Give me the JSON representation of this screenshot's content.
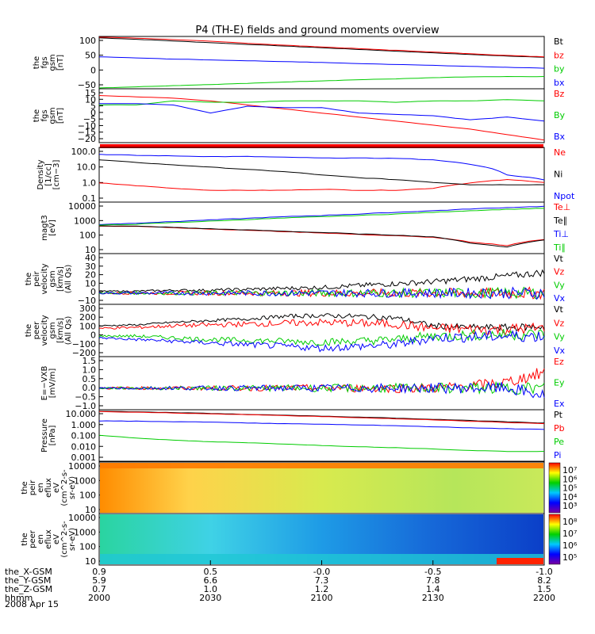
{
  "chart_data": {
    "type": "line",
    "title": "P4 (TH-E) fields and ground moments overview",
    "x_tick_labels": [
      "2000",
      "2030",
      "2100",
      "2130",
      "2200"
    ],
    "ephemeris": [
      {
        "name": "the_X-GSM",
        "values": [
          "0.9",
          "0.5",
          "-0.0",
          "-0.5",
          "-1.0"
        ]
      },
      {
        "name": "the_Y-GSM",
        "values": [
          "5.9",
          "6.6",
          "7.3",
          "7.8",
          "8.2"
        ]
      },
      {
        "name": "the_Z-GSM",
        "values": [
          "0.7",
          "1.0",
          "1.2",
          "1.4",
          "1.5"
        ]
      },
      {
        "name": "hhmm",
        "values": []
      }
    ],
    "date_label": "2008 Apr 15",
    "panels": [
      {
        "id": "fgs-gsm",
        "ylabel": [
          "the",
          "fgs",
          "gsm",
          "[nT]"
        ],
        "ticks": [
          "100",
          "50",
          "0",
          "−50"
        ],
        "ylim": [
          -75,
          110
        ],
        "series": [
          {
            "name": "Bt",
            "color": "#000000",
            "values": [
              105,
              100,
              94,
              88,
              82,
              76,
              70,
              64,
              58,
              52,
              46,
              41,
              36
            ]
          },
          {
            "name": "bz",
            "color": "#ff0000",
            "values": [
              108,
              104,
              99,
              93,
              86,
              79,
              73,
              67,
              61,
              55,
              49,
              43,
              38
            ]
          },
          {
            "name": "by",
            "color": "#00cc00",
            "values": [
              -72,
              -68,
              -64,
              -60,
              -56,
              -51,
              -47,
              -43,
              -40,
              -36,
              -33,
              -32,
              -32
            ]
          },
          {
            "name": "bx",
            "color": "#0000ff",
            "values": [
              38,
              34,
              30,
              27,
              24,
              21,
              18,
              14,
              11,
              8,
              4,
              1,
              -2
            ]
          }
        ]
      },
      {
        "id": "fgs-gsm-detail",
        "ylabel": [
          "the",
          "fgs",
          "gsm",
          "[nT]"
        ],
        "ticks": [
          "15",
          "10",
          "5",
          "0",
          "−5",
          "−10",
          "−15",
          "−20"
        ],
        "ylim": [
          -23,
          17
        ],
        "series": [
          {
            "name": "Bz",
            "color": "#ff0000",
            "values": [
              12,
              11,
              10,
              8,
              5,
              2,
              -1,
              -4,
              -7,
              -10,
              -13,
              -17,
              -21
            ]
          },
          {
            "name": "By",
            "color": "#00cc00",
            "values": [
              5,
              5,
              8,
              7,
              7,
              8,
              8,
              8,
              7,
              8,
              8,
              9,
              8
            ]
          },
          {
            "name": "Bx",
            "color": "#0000ff",
            "values": [
              6,
              6,
              5,
              -1,
              4,
              3,
              3,
              -1,
              -2,
              -3,
              -6,
              -4,
              -7
            ]
          }
        ]
      },
      {
        "id": "density",
        "ylabel": [
          "Density",
          "[1/cc]",
          "[cm−3]"
        ],
        "log": true,
        "ticks": [
          "100.0",
          "10.0",
          "1.0",
          "0.1"
        ],
        "ylim": [
          0.05,
          200
        ],
        "series": [
          {
            "name": "Ne",
            "color": "#ff0000",
            "values": [
              0.9,
              0.6,
              0.4,
              0.3,
              0.3,
              0.3,
              0.35,
              0.3,
              0.3,
              0.4,
              0.9,
              1.5,
              1.0
            ]
          },
          {
            "name": "Ni",
            "color": "#000000",
            "values": [
              30,
              20,
              14,
              10,
              7,
              5,
              3,
              2,
              1.5,
              1.0,
              0.7,
              0.7,
              0.7
            ]
          },
          {
            "name": "Npot",
            "color": "#0000ff",
            "values": [
              70,
              60,
              55,
              50,
              50,
              45,
              40,
              40,
              38,
              30,
              15,
              3,
              1.5
            ]
          }
        ]
      },
      {
        "id": "temperature",
        "ylabel": [
          "magt3",
          "[eV]"
        ],
        "log": true,
        "ticks": [
          "10000",
          "1000",
          "100",
          "10"
        ],
        "ylim": [
          8,
          12000
        ],
        "series": [
          {
            "name": "Te⊥",
            "color": "#ff0000",
            "values": [
              400,
              380,
              320,
              260,
              220,
              180,
              150,
              120,
              100,
              80,
              40,
              25,
              60
            ]
          },
          {
            "name": "Te∥",
            "color": "#000000",
            "values": [
              420,
              390,
              330,
              270,
              230,
              190,
              160,
              130,
              110,
              85,
              35,
              20,
              55
            ]
          },
          {
            "name": "Ti⊥",
            "color": "#0000ff",
            "values": [
              500,
              600,
              750,
              950,
              1200,
              1500,
              1800,
              2200,
              2800,
              3500,
              4500,
              5500,
              6500
            ]
          },
          {
            "name": "Ti∥",
            "color": "#00cc00",
            "values": [
              450,
              520,
              650,
              800,
              1000,
              1250,
              1500,
              1800,
              2200,
              2800,
              3500,
              4300,
              5000
            ]
          }
        ]
      },
      {
        "id": "peir-velocity",
        "ylabel": [
          "the",
          "peir",
          "velocity",
          "gsm",
          "[km/s]",
          "(All Qs)"
        ],
        "ticks": [
          "40",
          "30",
          "20",
          "10",
          "0",
          "−10"
        ],
        "ylim": [
          -12,
          42
        ],
        "series": [
          {
            "name": "Vt",
            "color": "#000000",
            "values": [
              2,
              2,
              3,
              3,
              4,
              5,
              6,
              8,
              10,
              12,
              15,
              18,
              22
            ]
          },
          {
            "name": "Vz",
            "color": "#ff0000",
            "values": [
              0,
              0,
              0,
              0,
              0,
              0,
              0,
              0,
              0,
              0,
              0,
              0,
              0
            ]
          },
          {
            "name": "Vy",
            "color": "#00cc00",
            "values": [
              0,
              0,
              0,
              0,
              0,
              0,
              0,
              0,
              0,
              0,
              0,
              0,
              0
            ]
          },
          {
            "name": "Vx",
            "color": "#0000ff",
            "values": [
              0,
              0,
              0,
              0,
              0,
              0,
              0,
              0,
              0,
              0,
              0,
              0,
              0
            ]
          }
        ]
      },
      {
        "id": "peer-velocity",
        "ylabel": [
          "the",
          "peer",
          "velocity",
          "gsm",
          "[km/s]",
          "(All Qs)"
        ],
        "ticks": [
          "300",
          "200",
          "100",
          "0",
          "−100",
          "−200"
        ],
        "ylim": [
          -280,
          330
        ],
        "series": [
          {
            "name": "Vt",
            "color": "#000000",
            "values": [
              80,
              90,
              120,
              140,
              160,
              190,
              200,
              190,
              170,
              80,
              60,
              60,
              70
            ]
          },
          {
            "name": "Vz",
            "color": "#ff0000",
            "values": [
              50,
              60,
              80,
              90,
              100,
              110,
              120,
              110,
              100,
              50,
              40,
              40,
              50
            ]
          },
          {
            "name": "Vy",
            "color": "#00cc00",
            "values": [
              -40,
              -40,
              -60,
              -80,
              -90,
              -100,
              -110,
              -100,
              -80,
              -40,
              -30,
              -20,
              -20
            ]
          },
          {
            "name": "Vx",
            "color": "#0000ff",
            "values": [
              -60,
              -80,
              -100,
              -120,
              -140,
              -160,
              -180,
              -160,
              -140,
              -60,
              -50,
              -40,
              -40
            ]
          }
        ]
      },
      {
        "id": "e-field",
        "ylabel": [
          "E=−VXB",
          "[mV/m]"
        ],
        "ticks": [
          "1.5",
          "1.0",
          "0.5",
          "0.0",
          "−0.5",
          "−1.0"
        ],
        "ylim": [
          -1.1,
          1.6
        ],
        "series": [
          {
            "name": "Ez",
            "color": "#ff0000",
            "values": [
              0,
              0,
              0,
              0,
              0,
              0,
              0,
              0,
              0,
              0,
              0.1,
              0.3,
              0.8
            ]
          },
          {
            "name": "Ey",
            "color": "#00cc00",
            "values": [
              0,
              0,
              0,
              0,
              0,
              0,
              0,
              0,
              0,
              0,
              0,
              0,
              0
            ]
          },
          {
            "name": "Ex",
            "color": "#0000ff",
            "values": [
              0,
              0,
              0,
              0,
              0,
              0,
              0,
              0,
              0,
              0,
              0,
              0,
              -0.4
            ]
          }
        ]
      },
      {
        "id": "pressure",
        "ylabel": [
          "Pressure",
          "[nPa]"
        ],
        "log": true,
        "ticks": [
          "10.000",
          "1.000",
          "0.100",
          "0.010",
          "0.001"
        ],
        "ylim": [
          0.0008,
          12
        ],
        "series": [
          {
            "name": "Pt",
            "color": "#000000",
            "values": [
              9,
              8,
              7,
              6,
              5,
              4.3,
              3.6,
              3,
              2.5,
              2,
              1.6,
              1.3,
              1.0
            ]
          },
          {
            "name": "Pb",
            "color": "#ff0000",
            "values": [
              8.5,
              7.5,
              6.5,
              5.5,
              4.7,
              4,
              3.3,
              2.7,
              2.2,
              1.8,
              1.4,
              1.1,
              0.9
            ]
          },
          {
            "name": "Pe",
            "color": "#00cc00",
            "values": [
              0.1,
              0.06,
              0.04,
              0.03,
              0.025,
              0.02,
              0.015,
              0.012,
              0.01,
              0.008,
              0.006,
              0.005,
              0.005
            ]
          },
          {
            "name": "Pi",
            "color": "#0000ff",
            "values": [
              1.5,
              1.4,
              1.3,
              1.2,
              1.0,
              0.9,
              0.8,
              0.7,
              0.6,
              0.5,
              0.4,
              0.35,
              0.3
            ]
          }
        ]
      },
      {
        "id": "peir-eflux",
        "type": "heatmap",
        "ylabel": [
          "the",
          "peir",
          "en",
          "eflux",
          "eV",
          "(cm^2-s-",
          "sr-eV)"
        ],
        "ticks": [
          "10000",
          "1000",
          "100",
          "10"
        ],
        "colorbar_ticks": [
          "10⁷",
          "10⁶",
          "10⁵",
          "10⁴",
          "10³"
        ]
      },
      {
        "id": "peer-eflux",
        "type": "heatmap",
        "ylabel": [
          "the",
          "peer",
          "en",
          "eflux",
          "eV",
          "(cm^2-s-",
          "sr-eV)"
        ],
        "ticks": [
          "10000",
          "1000",
          "100",
          "10"
        ],
        "colorbar_ticks": [
          "10⁸",
          "10⁷",
          "10⁶",
          "10⁵"
        ]
      }
    ]
  }
}
